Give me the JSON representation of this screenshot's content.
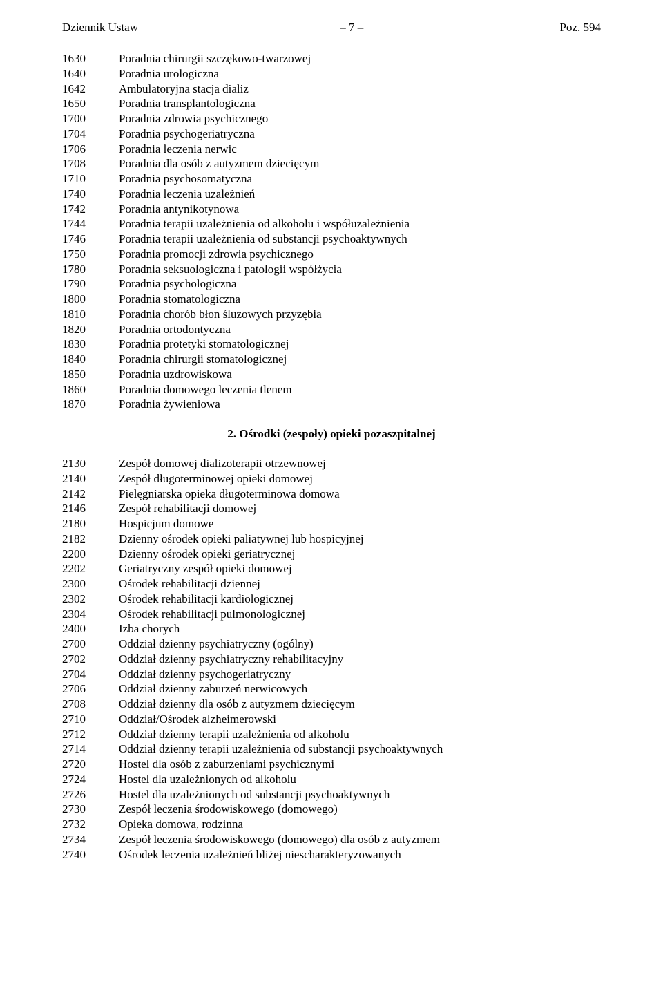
{
  "header": {
    "left": "Dziennik Ustaw",
    "center": "– 7 –",
    "right": "Poz. 594"
  },
  "section1": [
    {
      "code": "1630",
      "text": "Poradnia chirurgii szczękowo-twarzowej"
    },
    {
      "code": "1640",
      "text": "Poradnia urologiczna"
    },
    {
      "code": "1642",
      "text": "Ambulatoryjna stacja dializ"
    },
    {
      "code": "1650",
      "text": "Poradnia transplantologiczna"
    },
    {
      "code": "1700",
      "text": "Poradnia zdrowia psychicznego"
    },
    {
      "code": "1704",
      "text": "Poradnia psychogeriatryczna"
    },
    {
      "code": "1706",
      "text": "Poradnia leczenia nerwic"
    },
    {
      "code": "1708",
      "text": "Poradnia dla osób z autyzmem dziecięcym"
    },
    {
      "code": "1710",
      "text": "Poradnia psychosomatyczna"
    },
    {
      "code": "1740",
      "text": "Poradnia leczenia uzależnień"
    },
    {
      "code": "1742",
      "text": "Poradnia antynikotynowa"
    },
    {
      "code": "1744",
      "text": "Poradnia terapii uzależnienia od alkoholu i współuzależnienia"
    },
    {
      "code": "1746",
      "text": "Poradnia terapii uzależnienia od substancji psychoaktywnych"
    },
    {
      "code": "1750",
      "text": "Poradnia promocji zdrowia psychicznego"
    },
    {
      "code": "1780",
      "text": "Poradnia seksuologiczna i patologii współżycia"
    },
    {
      "code": "1790",
      "text": "Poradnia psychologiczna"
    },
    {
      "code": "1800",
      "text": "Poradnia stomatologiczna"
    },
    {
      "code": "1810",
      "text": "Poradnia chorób błon śluzowych przyzębia"
    },
    {
      "code": "1820",
      "text": "Poradnia ortodontyczna"
    },
    {
      "code": "1830",
      "text": "Poradnia protetyki stomatologicznej"
    },
    {
      "code": "1840",
      "text": "Poradnia chirurgii stomatologicznej"
    },
    {
      "code": "1850",
      "text": "Poradnia uzdrowiskowa"
    },
    {
      "code": "1860",
      "text": "Poradnia domowego leczenia tlenem"
    },
    {
      "code": "1870",
      "text": "Poradnia żywieniowa"
    }
  ],
  "section2_heading": "2. Ośrodki (zespoły) opieki pozaszpitalnej",
  "section2": [
    {
      "code": "2130",
      "text": "Zespół domowej dializoterapii otrzewnowej"
    },
    {
      "code": "2140",
      "text": "Zespół długoterminowej opieki domowej"
    },
    {
      "code": "2142",
      "text": "Pielęgniarska opieka długoterminowa domowa"
    },
    {
      "code": "2146",
      "text": "Zespół rehabilitacji domowej"
    },
    {
      "code": "2180",
      "text": "Hospicjum domowe"
    },
    {
      "code": "2182",
      "text": "Dzienny ośrodek opieki paliatywnej lub hospicyjnej"
    },
    {
      "code": "2200",
      "text": "Dzienny ośrodek opieki geriatrycznej"
    },
    {
      "code": "2202",
      "text": "Geriatryczny zespół opieki domowej"
    },
    {
      "code": "2300",
      "text": "Ośrodek rehabilitacji dziennej"
    },
    {
      "code": "2302",
      "text": "Ośrodek rehabilitacji kardiologicznej"
    },
    {
      "code": "2304",
      "text": "Ośrodek rehabilitacji pulmonologicznej"
    },
    {
      "code": "2400",
      "text": "Izba chorych"
    },
    {
      "code": "2700",
      "text": "Oddział dzienny psychiatryczny (ogólny)"
    },
    {
      "code": "2702",
      "text": "Oddział dzienny psychiatryczny rehabilitacyjny"
    },
    {
      "code": "2704",
      "text": "Oddział dzienny psychogeriatryczny"
    },
    {
      "code": "2706",
      "text": "Oddział dzienny zaburzeń nerwicowych"
    },
    {
      "code": "2708",
      "text": "Oddział dzienny dla osób z autyzmem dziecięcym"
    },
    {
      "code": "2710",
      "text": "Oddział/Ośrodek alzheimerowski"
    },
    {
      "code": "2712",
      "text": "Oddział dzienny terapii uzależnienia od alkoholu"
    },
    {
      "code": "2714",
      "text": "Oddział dzienny terapii uzależnienia od substancji psychoaktywnych"
    },
    {
      "code": "2720",
      "text": "Hostel dla osób z zaburzeniami psychicznymi"
    },
    {
      "code": "2724",
      "text": "Hostel dla uzależnionych od alkoholu"
    },
    {
      "code": "2726",
      "text": "Hostel dla uzależnionych od substancji psychoaktywnych"
    },
    {
      "code": "2730",
      "text": "Zespół leczenia środowiskowego (domowego)"
    },
    {
      "code": "2732",
      "text": "Opieka domowa, rodzinna"
    },
    {
      "code": "2734",
      "text": "Zespół leczenia środowiskowego (domowego) dla osób z autyzmem"
    },
    {
      "code": "2740",
      "text": "Ośrodek leczenia uzależnień bliżej niescharakteryzowanych"
    }
  ]
}
